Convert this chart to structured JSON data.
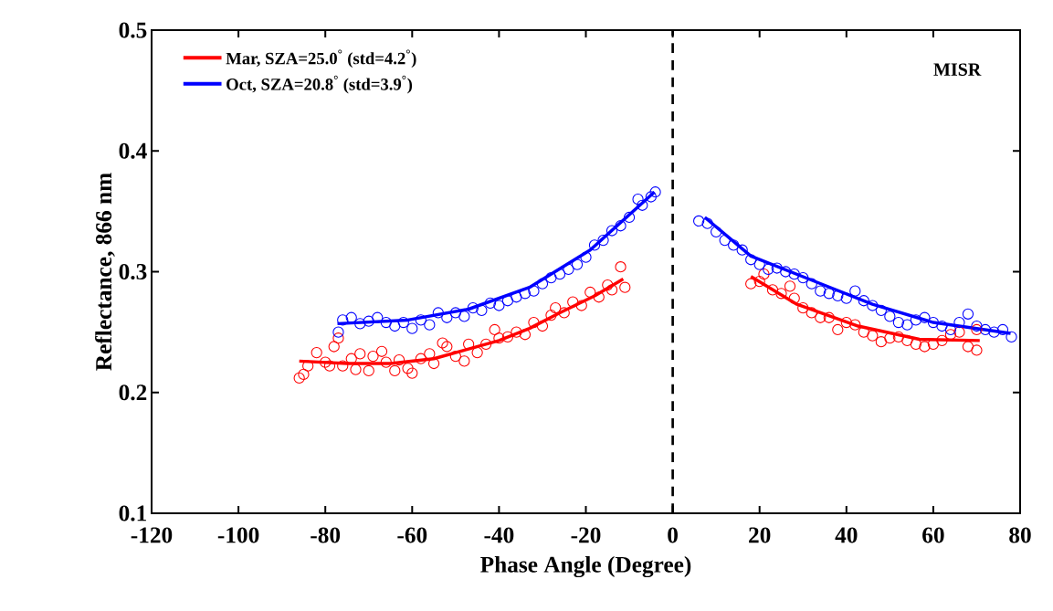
{
  "chart_data": {
    "type": "scatter",
    "xlabel": "Phase Angle (Degree)",
    "ylabel": "Reflectance, 866 nm",
    "xlim": [
      -120,
      80
    ],
    "ylim": [
      0.1,
      0.5
    ],
    "xticks": [
      -120,
      -100,
      -80,
      -60,
      -40,
      -20,
      0,
      20,
      40,
      60,
      80
    ],
    "yticks": [
      0.1,
      0.2,
      0.3,
      0.4,
      0.5
    ],
    "legend": "top left",
    "annotations": [
      "MISR"
    ],
    "ref_lines": [
      {
        "axis": "x",
        "value": 0,
        "color": "#000000",
        "line_style": "dashed"
      }
    ],
    "series": [
      {
        "type": "line",
        "name": "Mar, SZA=25.0$^{°}$ (std=4.2$^{°}$)",
        "color": "#ff0000",
        "marker": "none",
        "line_style": "solid",
        "x": [
          -86,
          -75,
          -65,
          -55,
          -47,
          -40,
          -33,
          -26,
          -18,
          -11.4,
          0,
          18,
          28.6,
          42.7,
          56.8,
          70.7
        ],
        "values": [
          0.226,
          0.224,
          0.224,
          0.228,
          0.236,
          0.243,
          0.253,
          0.266,
          0.28,
          0.294,
          null,
          0.296,
          0.273,
          0.255,
          0.244,
          0.243
        ]
      },
      {
        "type": "line",
        "name": "Oct, SZA=20.8$^{°}$ (std=3.9$^{°}$)",
        "color": "#0000ff",
        "marker": "none",
        "line_style": "solid",
        "x": [
          -77.2,
          -61,
          -47,
          -33,
          -19,
          -4.2,
          0,
          7.4,
          18,
          32,
          46,
          60,
          77.8
        ],
        "values": [
          0.257,
          0.26,
          0.269,
          0.287,
          0.318,
          0.366,
          null,
          0.345,
          0.313,
          0.293,
          0.273,
          0.258,
          0.249
        ]
      },
      {
        "color": "#ff0000",
        "marker": "circle",
        "x": [
          -86,
          -85,
          -84,
          -82,
          -80,
          -79,
          -78,
          -77,
          -76,
          -74,
          -73,
          -72,
          -70,
          -69,
          -67,
          -66,
          -64,
          -63,
          -61,
          -60,
          -58,
          -56,
          -55,
          -53,
          -52,
          -50,
          -48,
          -47,
          -45,
          -43,
          -41,
          -40,
          -38,
          -36,
          -34,
          -32,
          -30,
          -28,
          -27,
          -25,
          -23,
          -21,
          -19,
          -17,
          -15,
          -14,
          -12,
          -11,
          18,
          20,
          21,
          23,
          25,
          27,
          28,
          30,
          32,
          34,
          36,
          38,
          40,
          42,
          44,
          46,
          48,
          50,
          52,
          54,
          56,
          58,
          60,
          62,
          64,
          66,
          68,
          70,
          70
        ],
        "values": [
          0.212,
          0.215,
          0.222,
          0.233,
          0.225,
          0.222,
          0.238,
          0.245,
          0.222,
          0.228,
          0.219,
          0.232,
          0.218,
          0.23,
          0.234,
          0.225,
          0.218,
          0.227,
          0.22,
          0.216,
          0.228,
          0.232,
          0.224,
          0.241,
          0.238,
          0.23,
          0.226,
          0.24,
          0.233,
          0.24,
          0.252,
          0.245,
          0.246,
          0.25,
          0.248,
          0.258,
          0.255,
          0.264,
          0.27,
          0.266,
          0.275,
          0.272,
          0.283,
          0.279,
          0.289,
          0.285,
          0.304,
          0.287,
          0.29,
          0.292,
          0.298,
          0.285,
          0.282,
          0.288,
          0.278,
          0.27,
          0.266,
          0.262,
          0.262,
          0.252,
          0.258,
          0.256,
          0.25,
          0.247,
          0.242,
          0.245,
          0.246,
          0.243,
          0.24,
          0.238,
          0.24,
          0.243,
          0.248,
          0.25,
          0.238,
          0.235,
          0.252
        ]
      },
      {
        "color": "#0000ff",
        "marker": "circle",
        "x": [
          -77,
          -76,
          -74,
          -72,
          -70,
          -68,
          -66,
          -64,
          -62,
          -60,
          -58,
          -56,
          -54,
          -52,
          -50,
          -48,
          -46,
          -44,
          -42,
          -40,
          -38,
          -36,
          -34,
          -32,
          -30,
          -28,
          -26,
          -24,
          -22,
          -20,
          -18,
          -16,
          -14,
          -12,
          -10,
          -8,
          -7,
          -5,
          -4,
          6,
          8,
          10,
          12,
          14,
          16,
          18,
          20,
          22,
          24,
          26,
          28,
          30,
          32,
          34,
          36,
          38,
          40,
          42,
          44,
          46,
          48,
          50,
          52,
          54,
          56,
          58,
          60,
          62,
          64,
          66,
          68,
          70,
          72,
          74,
          76,
          78
        ],
        "values": [
          0.25,
          0.26,
          0.262,
          0.257,
          0.259,
          0.262,
          0.258,
          0.255,
          0.258,
          0.253,
          0.26,
          0.256,
          0.266,
          0.262,
          0.266,
          0.263,
          0.27,
          0.268,
          0.274,
          0.272,
          0.276,
          0.279,
          0.282,
          0.284,
          0.29,
          0.295,
          0.298,
          0.302,
          0.306,
          0.312,
          0.322,
          0.326,
          0.334,
          0.338,
          0.345,
          0.36,
          0.355,
          0.362,
          0.366,
          0.342,
          0.34,
          0.333,
          0.326,
          0.322,
          0.318,
          0.31,
          0.306,
          0.302,
          0.303,
          0.3,
          0.298,
          0.295,
          0.29,
          0.284,
          0.282,
          0.28,
          0.278,
          0.284,
          0.276,
          0.272,
          0.268,
          0.263,
          0.258,
          0.256,
          0.26,
          0.262,
          0.258,
          0.255,
          0.252,
          0.258,
          0.265,
          0.255,
          0.252,
          0.25,
          0.252,
          0.246
        ]
      }
    ]
  }
}
